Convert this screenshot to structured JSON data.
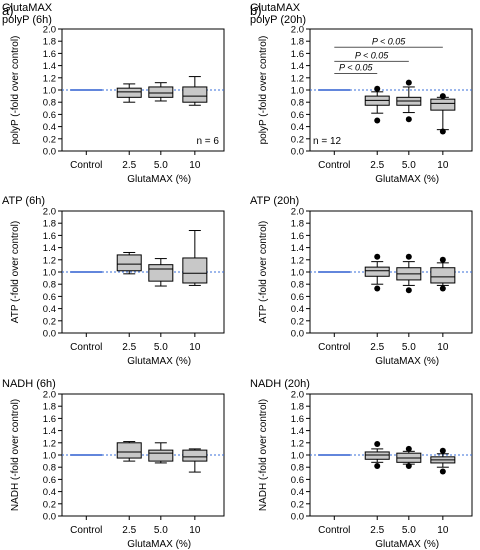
{
  "panel_labels": [
    "a)",
    "b)"
  ],
  "colors": {
    "control_line": "#2f5fd0",
    "reference_line": "#3a6fd8",
    "box_fill": "#c8c8c8",
    "outlier": "#000000"
  },
  "chart_data": [
    {
      "type": "box",
      "title_lines": [
        "GlutaMAX",
        "polyP (6h)"
      ],
      "xlabel": "GlutaMAX (%)",
      "ylabel": "polyP (-fold over control)",
      "categories": [
        "Control",
        "2.5",
        "5.0",
        "10"
      ],
      "ylim": [
        0,
        2
      ],
      "yticks": [
        "0.0",
        "0.2",
        "0.4",
        "0.6",
        "0.8",
        "1.0",
        "1.2",
        "1.4",
        "1.6",
        "1.8",
        "2.0"
      ],
      "reference_y": 1.0,
      "control_value": 1.0,
      "boxes": [
        {
          "category": "2.5",
          "min": 0.8,
          "q1": 0.88,
          "median": 0.97,
          "q3": 1.03,
          "max": 1.1,
          "outliers": []
        },
        {
          "category": "5.0",
          "min": 0.82,
          "q1": 0.88,
          "median": 0.95,
          "q3": 1.05,
          "max": 1.12,
          "outliers": []
        },
        {
          "category": "10",
          "min": 0.75,
          "q1": 0.8,
          "median": 0.9,
          "q3": 1.05,
          "max": 1.22,
          "outliers": []
        }
      ],
      "n_label": "n = 6",
      "n_position": "bottom-right",
      "significance": []
    },
    {
      "type": "box",
      "title_lines": [
        "GlutaMAX",
        "polyP (20h)"
      ],
      "xlabel": "GlutaMAX (%)",
      "ylabel": "polyP (-fold over control)",
      "categories": [
        "Control",
        "2.5",
        "5.0",
        "10"
      ],
      "ylim": [
        0,
        2
      ],
      "yticks": [
        "0.0",
        "0.2",
        "0.4",
        "0.6",
        "0.8",
        "1.0",
        "1.2",
        "1.4",
        "1.6",
        "1.8",
        "2.0"
      ],
      "reference_y": 1.0,
      "control_value": 1.0,
      "boxes": [
        {
          "category": "2.5",
          "min": 0.62,
          "q1": 0.75,
          "median": 0.83,
          "q3": 0.9,
          "max": 0.97,
          "outliers": [
            0.5,
            1.02
          ]
        },
        {
          "category": "5.0",
          "min": 0.63,
          "q1": 0.75,
          "median": 0.82,
          "q3": 0.88,
          "max": 1.05,
          "outliers": [
            0.52,
            1.12
          ]
        },
        {
          "category": "10",
          "min": 0.35,
          "q1": 0.67,
          "median": 0.78,
          "q3": 0.85,
          "max": 0.88,
          "outliers": [
            0.32,
            0.9
          ]
        }
      ],
      "n_label": "n = 12",
      "n_position": "bottom-left",
      "significance": [
        {
          "from": "Control",
          "to": "2.5",
          "y": 1.27,
          "label": "P < 0.05"
        },
        {
          "from": "Control",
          "to": "5.0",
          "y": 1.47,
          "label": "P < 0.05"
        },
        {
          "from": "Control",
          "to": "10",
          "y": 1.7,
          "label": "P < 0.05"
        }
      ]
    },
    {
      "type": "box",
      "title_lines": [
        "ATP (6h)"
      ],
      "xlabel": "GlutaMAX (%)",
      "ylabel": "ATP (-fold over control)",
      "categories": [
        "Control",
        "2.5",
        "5.0",
        "10"
      ],
      "ylim": [
        0,
        2
      ],
      "yticks": [
        "0.0",
        "0.2",
        "0.4",
        "0.6",
        "0.8",
        "1.0",
        "1.2",
        "1.4",
        "1.6",
        "1.8",
        "2.0"
      ],
      "reference_y": 1.0,
      "control_value": 1.0,
      "boxes": [
        {
          "category": "2.5",
          "min": 0.97,
          "q1": 1.02,
          "median": 1.13,
          "q3": 1.28,
          "max": 1.32,
          "outliers": []
        },
        {
          "category": "5.0",
          "min": 0.77,
          "q1": 0.85,
          "median": 1.05,
          "q3": 1.12,
          "max": 1.22,
          "outliers": []
        },
        {
          "category": "10",
          "min": 0.78,
          "q1": 0.82,
          "median": 0.98,
          "q3": 1.23,
          "max": 1.68,
          "outliers": []
        }
      ],
      "n_label": "",
      "significance": []
    },
    {
      "type": "box",
      "title_lines": [
        "ATP (20h)"
      ],
      "xlabel": "GlutaMAX (%)",
      "ylabel": "ATP (-fold over control)",
      "categories": [
        "Control",
        "2.5",
        "5.0",
        "10"
      ],
      "ylim": [
        0,
        2
      ],
      "yticks": [
        "0.0",
        "0.2",
        "0.4",
        "0.6",
        "0.8",
        "1.0",
        "1.2",
        "1.4",
        "1.6",
        "1.8",
        "2.0"
      ],
      "reference_y": 1.0,
      "control_value": 1.0,
      "boxes": [
        {
          "category": "2.5",
          "min": 0.8,
          "q1": 0.93,
          "median": 1.02,
          "q3": 1.08,
          "max": 1.17,
          "outliers": [
            0.73,
            1.25
          ]
        },
        {
          "category": "5.0",
          "min": 0.78,
          "q1": 0.87,
          "median": 0.97,
          "q3": 1.07,
          "max": 1.17,
          "outliers": [
            0.7,
            1.25
          ]
        },
        {
          "category": "10",
          "min": 0.78,
          "q1": 0.82,
          "median": 0.92,
          "q3": 1.07,
          "max": 1.15,
          "outliers": [
            0.73,
            1.2
          ]
        }
      ],
      "n_label": "",
      "significance": []
    },
    {
      "type": "box",
      "title_lines": [
        "NADH (6h)"
      ],
      "xlabel": "GlutaMAX (%)",
      "ylabel": "NADH (-fold over control)",
      "categories": [
        "Control",
        "2.5",
        "5.0",
        "10"
      ],
      "ylim": [
        0,
        2
      ],
      "yticks": [
        "0.0",
        "0.2",
        "0.4",
        "0.6",
        "0.8",
        "1.0",
        "1.2",
        "1.4",
        "1.6",
        "1.8",
        "2.0"
      ],
      "reference_y": 1.0,
      "control_value": 1.0,
      "boxes": [
        {
          "category": "2.5",
          "min": 0.9,
          "q1": 0.95,
          "median": 1.05,
          "q3": 1.2,
          "max": 1.22,
          "outliers": []
        },
        {
          "category": "5.0",
          "min": 0.87,
          "q1": 0.9,
          "median": 1.03,
          "q3": 1.08,
          "max": 1.2,
          "outliers": []
        },
        {
          "category": "10",
          "min": 0.72,
          "q1": 0.9,
          "median": 0.97,
          "q3": 1.08,
          "max": 1.1,
          "outliers": []
        }
      ],
      "n_label": "",
      "significance": []
    },
    {
      "type": "box",
      "title_lines": [
        "NADH (20h)"
      ],
      "xlabel": "GlutaMAX (%)",
      "ylabel": "NADH (-fold over control)",
      "categories": [
        "Control",
        "2.5",
        "5.0",
        "10"
      ],
      "ylim": [
        0,
        2
      ],
      "yticks": [
        "0.0",
        "0.2",
        "0.4",
        "0.6",
        "0.8",
        "1.0",
        "1.2",
        "1.4",
        "1.6",
        "1.8",
        "2.0"
      ],
      "reference_y": 1.0,
      "control_value": 1.0,
      "boxes": [
        {
          "category": "2.5",
          "min": 0.88,
          "q1": 0.93,
          "median": 1.0,
          "q3": 1.05,
          "max": 1.1,
          "outliers": [
            0.82,
            1.18
          ]
        },
        {
          "category": "5.0",
          "min": 0.85,
          "q1": 0.88,
          "median": 0.95,
          "q3": 1.03,
          "max": 1.06,
          "outliers": [
            0.82,
            1.1
          ]
        },
        {
          "category": "10",
          "min": 0.8,
          "q1": 0.87,
          "median": 0.92,
          "q3": 0.97,
          "max": 1.02,
          "outliers": [
            0.73,
            1.07
          ]
        }
      ],
      "n_label": "",
      "significance": []
    }
  ]
}
